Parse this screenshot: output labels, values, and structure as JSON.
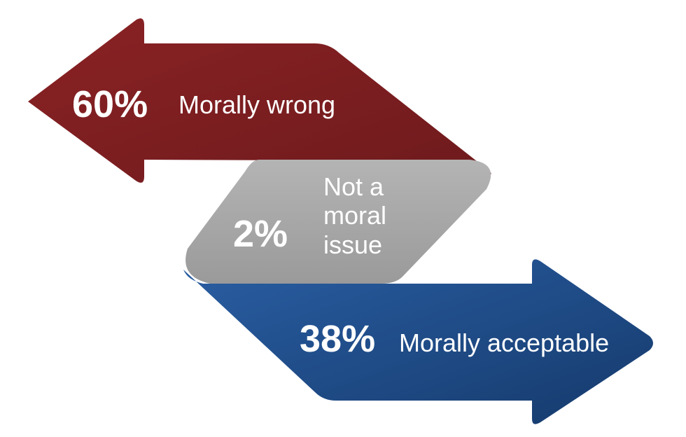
{
  "items": [
    {
      "value": "60%",
      "label": "Morally wrong"
    },
    {
      "value": "2%",
      "label": "Not a moral issue"
    },
    {
      "value": "38%",
      "label": "Morally acceptable"
    }
  ]
}
